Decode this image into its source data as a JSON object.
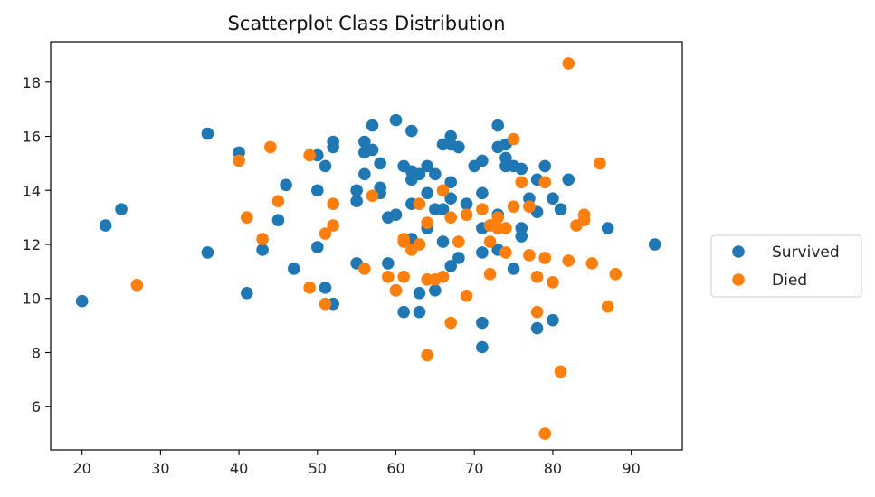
{
  "chart_data": {
    "type": "scatter",
    "title": "Scatterplot Class Distribution",
    "xlabel": "",
    "ylabel": "",
    "xlim": [
      16,
      96.5
    ],
    "ylim": [
      4.4,
      19.5
    ],
    "xticks": [
      20,
      30,
      40,
      50,
      60,
      70,
      80,
      90
    ],
    "yticks": [
      6,
      8,
      10,
      12,
      14,
      16,
      18
    ],
    "grid": false,
    "legend_position": "right",
    "series": [
      {
        "name": "Survived",
        "color": "#1f77b4",
        "points": [
          [
            20,
            9.9
          ],
          [
            23,
            12.7
          ],
          [
            25,
            13.3
          ],
          [
            36,
            16.1
          ],
          [
            36,
            11.7
          ],
          [
            40,
            15.4
          ],
          [
            41,
            10.2
          ],
          [
            43,
            11.8
          ],
          [
            45,
            12.9
          ],
          [
            46,
            14.2
          ],
          [
            47,
            11.1
          ],
          [
            50,
            15.3
          ],
          [
            50,
            14.0
          ],
          [
            50,
            11.9
          ],
          [
            51,
            14.9
          ],
          [
            51,
            10.4
          ],
          [
            52,
            15.8
          ],
          [
            52,
            15.6
          ],
          [
            52,
            9.8
          ],
          [
            55,
            14.0
          ],
          [
            55,
            13.6
          ],
          [
            55,
            11.3
          ],
          [
            56,
            15.8
          ],
          [
            56,
            15.4
          ],
          [
            56,
            14.6
          ],
          [
            57,
            16.4
          ],
          [
            57,
            15.5
          ],
          [
            58,
            15.0
          ],
          [
            58,
            14.1
          ],
          [
            58,
            13.9
          ],
          [
            59,
            13.0
          ],
          [
            59,
            11.3
          ],
          [
            60,
            16.6
          ],
          [
            60,
            13.1
          ],
          [
            60,
            10.3
          ],
          [
            61,
            14.9
          ],
          [
            61,
            9.5
          ],
          [
            62,
            16.2
          ],
          [
            62,
            14.7
          ],
          [
            62,
            14.4
          ],
          [
            62,
            13.5
          ],
          [
            62,
            12.2
          ],
          [
            63,
            14.6
          ],
          [
            63,
            10.2
          ],
          [
            63,
            9.5
          ],
          [
            64,
            14.9
          ],
          [
            64,
            13.9
          ],
          [
            64,
            12.6
          ],
          [
            65,
            14.6
          ],
          [
            65,
            13.3
          ],
          [
            65,
            10.3
          ],
          [
            66,
            15.7
          ],
          [
            66,
            13.3
          ],
          [
            66,
            12.1
          ],
          [
            67,
            16.0
          ],
          [
            67,
            15.7
          ],
          [
            67,
            14.3
          ],
          [
            67,
            13.7
          ],
          [
            67,
            11.2
          ],
          [
            68,
            15.6
          ],
          [
            68,
            11.5
          ],
          [
            69,
            13.5
          ],
          [
            70,
            14.9
          ],
          [
            71,
            15.1
          ],
          [
            71,
            13.9
          ],
          [
            71,
            12.6
          ],
          [
            71,
            11.7
          ],
          [
            71,
            9.1
          ],
          [
            71,
            8.2
          ],
          [
            72,
            12.7
          ],
          [
            73,
            16.4
          ],
          [
            73,
            15.6
          ],
          [
            73,
            13.1
          ],
          [
            73,
            11.8
          ],
          [
            74,
            15.7
          ],
          [
            74,
            15.2
          ],
          [
            74,
            14.9
          ],
          [
            75,
            14.9
          ],
          [
            75,
            11.1
          ],
          [
            76,
            14.8
          ],
          [
            76,
            12.6
          ],
          [
            76,
            12.3
          ],
          [
            77,
            13.7
          ],
          [
            78,
            14.4
          ],
          [
            78,
            13.2
          ],
          [
            78,
            8.9
          ],
          [
            79,
            14.9
          ],
          [
            80,
            13.7
          ],
          [
            80,
            9.2
          ],
          [
            81,
            13.3
          ],
          [
            82,
            14.4
          ],
          [
            87,
            12.6
          ],
          [
            93,
            12.0
          ]
        ]
      },
      {
        "name": "Died",
        "color": "#ff7f0e",
        "points": [
          [
            27,
            10.5
          ],
          [
            40,
            15.1
          ],
          [
            41,
            13.0
          ],
          [
            43,
            12.2
          ],
          [
            44,
            15.6
          ],
          [
            45,
            13.6
          ],
          [
            49,
            15.3
          ],
          [
            49,
            10.4
          ],
          [
            51,
            12.4
          ],
          [
            51,
            9.8
          ],
          [
            52,
            13.5
          ],
          [
            52,
            12.7
          ],
          [
            56,
            11.1
          ],
          [
            57,
            13.8
          ],
          [
            59,
            10.8
          ],
          [
            60,
            10.3
          ],
          [
            61,
            12.2
          ],
          [
            61,
            12.1
          ],
          [
            61,
            10.8
          ],
          [
            62,
            11.8
          ],
          [
            63,
            13.5
          ],
          [
            63,
            12.0
          ],
          [
            64,
            12.8
          ],
          [
            64,
            10.7
          ],
          [
            64,
            7.9
          ],
          [
            65,
            10.7
          ],
          [
            66,
            14.0
          ],
          [
            66,
            10.8
          ],
          [
            67,
            13.0
          ],
          [
            67,
            9.1
          ],
          [
            68,
            12.1
          ],
          [
            69,
            13.1
          ],
          [
            69,
            10.1
          ],
          [
            71,
            13.3
          ],
          [
            72,
            12.7
          ],
          [
            72,
            12.1
          ],
          [
            72,
            10.9
          ],
          [
            73,
            13.0
          ],
          [
            73,
            12.6
          ],
          [
            74,
            12.6
          ],
          [
            74,
            11.7
          ],
          [
            75,
            15.9
          ],
          [
            75,
            13.4
          ],
          [
            76,
            14.3
          ],
          [
            77,
            13.4
          ],
          [
            77,
            11.6
          ],
          [
            78,
            10.8
          ],
          [
            78,
            9.5
          ],
          [
            79,
            14.3
          ],
          [
            79,
            11.5
          ],
          [
            79,
            5.0
          ],
          [
            80,
            10.6
          ],
          [
            81,
            7.3
          ],
          [
            82,
            18.7
          ],
          [
            82,
            11.4
          ],
          [
            83,
            12.7
          ],
          [
            84,
            13.1
          ],
          [
            84,
            12.9
          ],
          [
            85,
            11.3
          ],
          [
            86,
            15.0
          ],
          [
            87,
            9.7
          ],
          [
            88,
            10.9
          ]
        ]
      }
    ]
  }
}
